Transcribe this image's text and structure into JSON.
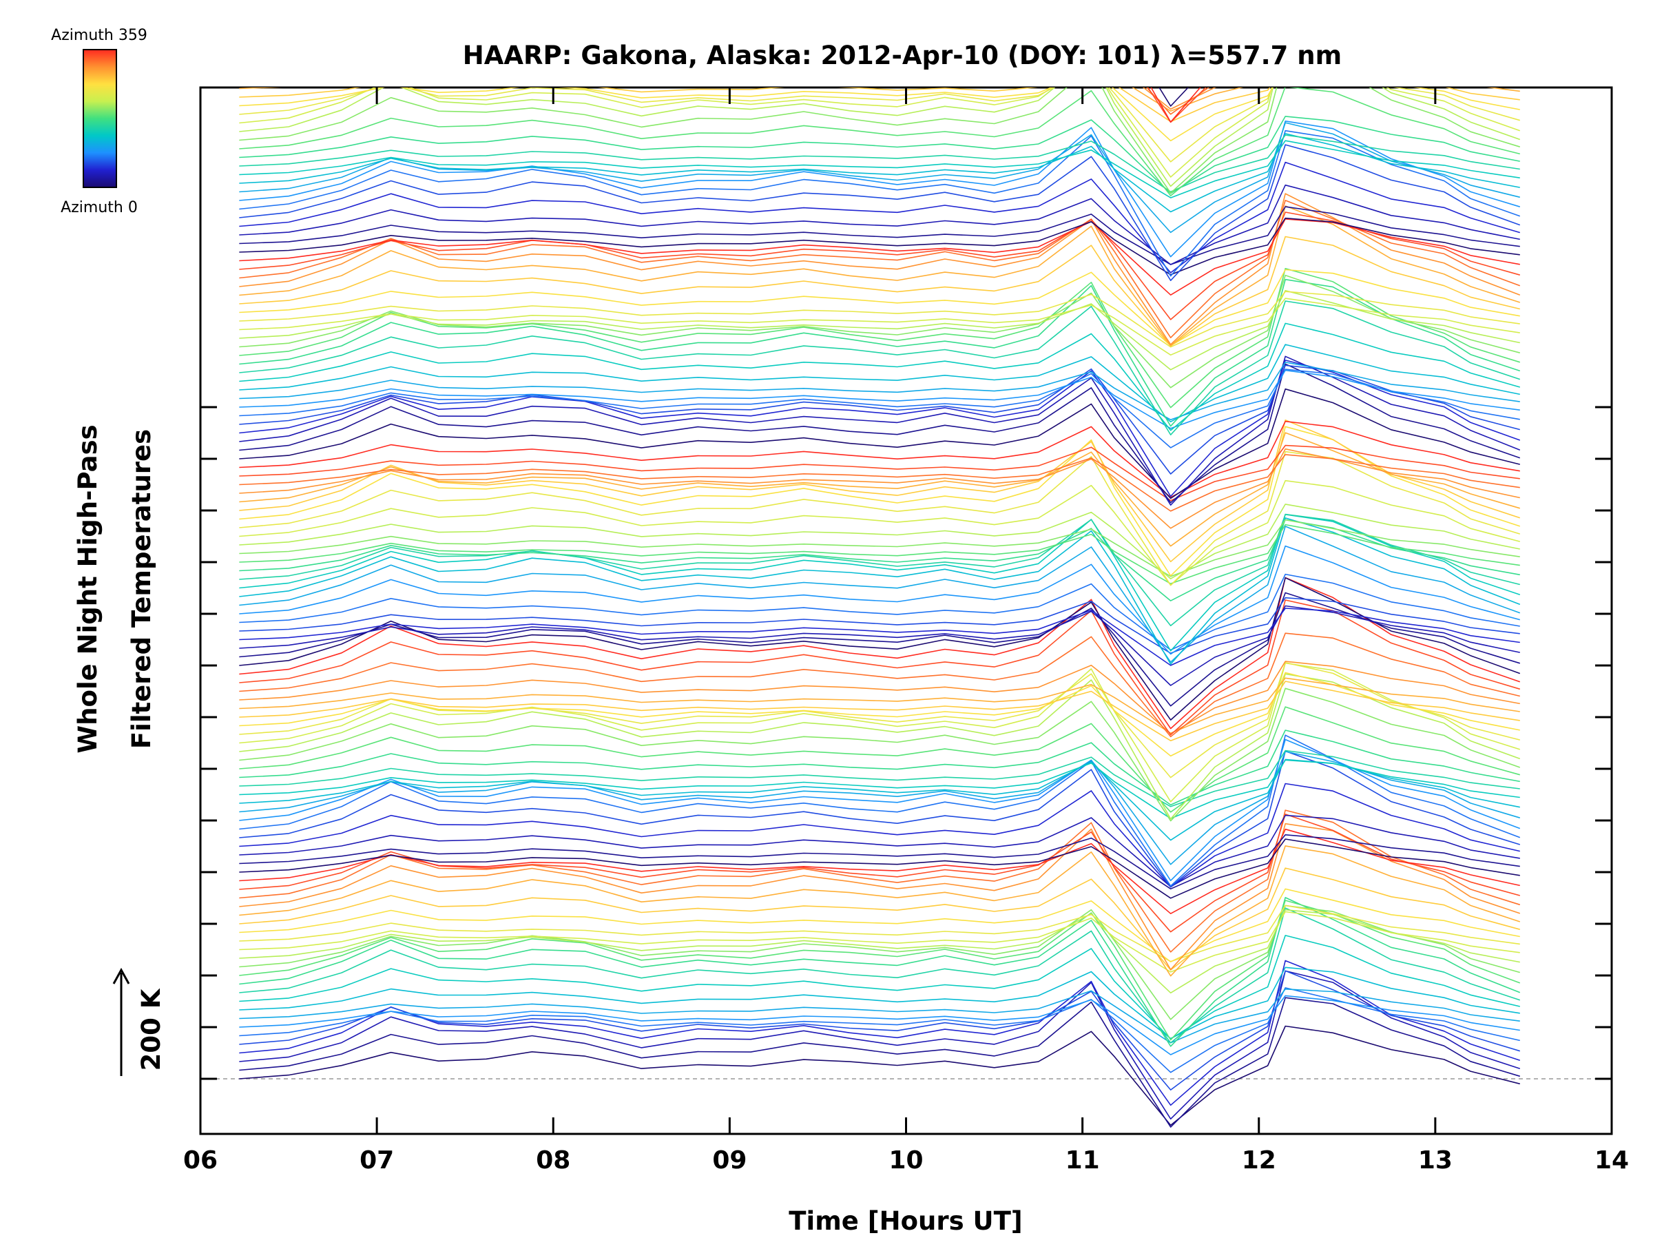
{
  "chart_data": {
    "type": "line",
    "title": "HAARP: Gakona,  Alaska: 2012-Apr-10 (DOY: 101) λ=557.7 nm",
    "xlabel": "Time [Hours UT]",
    "ylabel_line1": "Whole Night High-Pass",
    "ylabel_line2": "Filtered Temperatures",
    "xlim": [
      6,
      14
    ],
    "x_ticks": [
      "06",
      "07",
      "08",
      "09",
      "10",
      "11",
      "12",
      "13",
      "14"
    ],
    "scale_bar_label": "200 K",
    "scale_bar_value_K": 200,
    "colorbar": {
      "top_label": "Azimuth 359",
      "bottom_label": "Azimuth 0",
      "colormap": "rainbow",
      "colors": [
        "#1a0a70",
        "#2020d0",
        "#1e90ff",
        "#00c8c8",
        "#40e080",
        "#c8f050",
        "#ffe040",
        "#ff9030",
        "#ff2a20"
      ]
    },
    "stacked_groups": 7,
    "traces_per_group": 24,
    "group_offset_K": 400,
    "time_hours": [
      6.22,
      6.5,
      6.8,
      7.08,
      7.35,
      7.62,
      7.88,
      8.18,
      8.5,
      8.82,
      9.12,
      9.42,
      9.68,
      9.95,
      10.22,
      10.5,
      10.75,
      11.05,
      11.18,
      11.5,
      11.75,
      12.05,
      12.15,
      12.42,
      12.75,
      13.05,
      13.2,
      13.48
    ],
    "profile_K": [
      0,
      10,
      40,
      85,
      55,
      55,
      70,
      60,
      30,
      45,
      40,
      55,
      45,
      35,
      50,
      35,
      55,
      140,
      60,
      -120,
      -30,
      40,
      170,
      140,
      80,
      50,
      20,
      -15
    ],
    "reference_line_K": 0
  }
}
